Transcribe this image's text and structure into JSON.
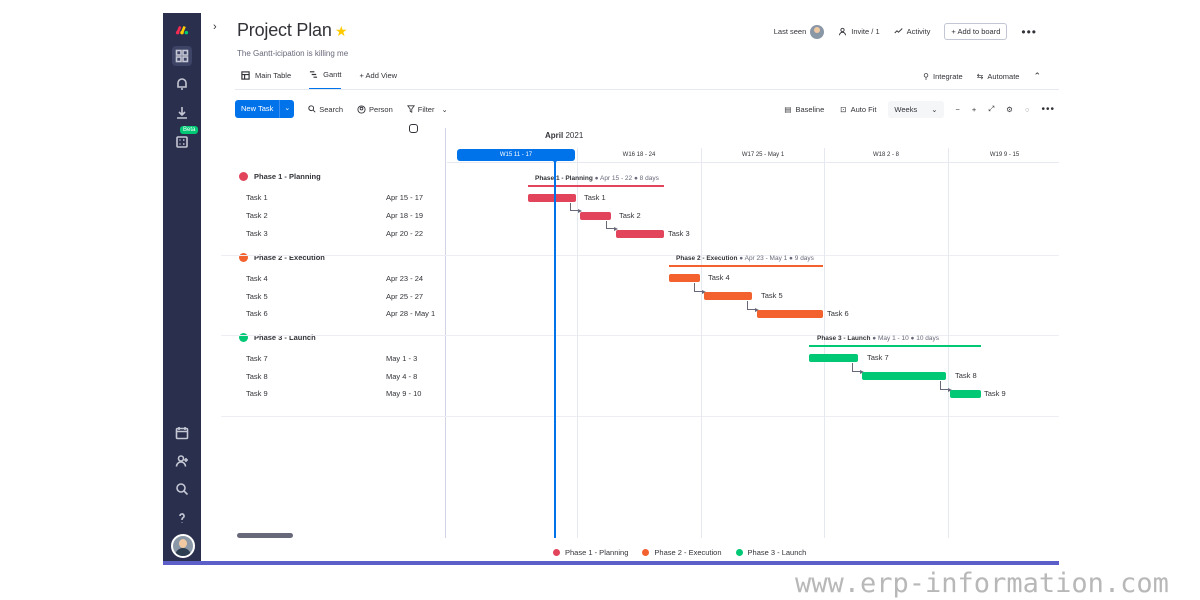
{
  "app": {
    "title": "Project Plan",
    "subtitle": "The Gantt-icipation is killing me"
  },
  "sidebar": {
    "beta_badge": "Beta",
    "icons": [
      "home-grid-icon",
      "bell-icon",
      "download-icon",
      "apps-icon",
      "calendar-icon",
      "add-user-icon",
      "search-icon",
      "help-icon"
    ]
  },
  "header": {
    "last_seen": "Last seen",
    "invite": "Invite / 1",
    "activity": "Activity",
    "add_to_board": "+ Add to board"
  },
  "tabs": {
    "main_table": "Main Table",
    "gantt": "Gantt",
    "add_view": "+ Add View",
    "integrate": "Integrate",
    "automate": "Automate"
  },
  "toolbar": {
    "new_task": "New Task",
    "search": "Search",
    "person": "Person",
    "filter": "Filter",
    "baseline": "Baseline",
    "auto_fit": "Auto Fit",
    "zoom_select": "Weeks",
    "zoom_minus": "−",
    "zoom_plus": "+"
  },
  "timeline": {
    "month": "April",
    "year": "2021",
    "weeks": [
      "W15   11 - 17",
      "W16   18 - 24",
      "W17   25 - May 1",
      "W18   2 - 8",
      "W19   9 - 15"
    ]
  },
  "groups": [
    {
      "name": "Phase 1 - Planning",
      "color": "#e2445c",
      "summary": "Phase 1 - Planning",
      "summary_meta": "● Apr 15 - 22 ● 8 days",
      "tasks": [
        {
          "name": "Task 1",
          "dates": "Apr 15 - 17"
        },
        {
          "name": "Task 2",
          "dates": "Apr 18 - 19"
        },
        {
          "name": "Task 3",
          "dates": "Apr 20 - 22"
        }
      ]
    },
    {
      "name": "Phase 2 - Execution",
      "color": "#f2612e",
      "summary": "Phase 2 - Execution",
      "summary_meta": "● Apr 23 - May 1 ● 9 days",
      "tasks": [
        {
          "name": "Task 4",
          "dates": "Apr 23 - 24"
        },
        {
          "name": "Task 5",
          "dates": "Apr 25 - 27"
        },
        {
          "name": "Task 6",
          "dates": "Apr 28 - May 1"
        }
      ]
    },
    {
      "name": "Phase 3 - Launch",
      "color": "#00c875",
      "summary": "Phase 3 - Launch",
      "summary_meta": "● May 1 - 10 ● 10 days",
      "tasks": [
        {
          "name": "Task 7",
          "dates": "May 1 - 3"
        },
        {
          "name": "Task 8",
          "dates": "May 4 - 8"
        },
        {
          "name": "Task 9",
          "dates": "May 9 - 10"
        }
      ]
    }
  ],
  "legend": [
    "Phase 1 - Planning",
    "Phase 2 - Execution",
    "Phase 3 - Launch"
  ],
  "watermark": "www.erp-information.com",
  "colors": {
    "sidebar": "#292f4c",
    "primary": "#0073ea",
    "phase1": "#e2445c",
    "phase2": "#f2612e",
    "phase3": "#00c875"
  }
}
